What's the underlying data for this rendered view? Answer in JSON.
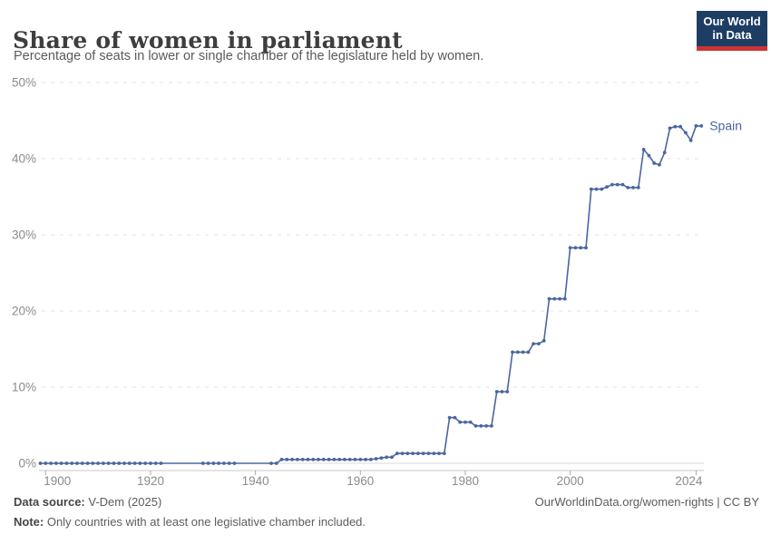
{
  "header": {
    "title": "Share of women in parliament",
    "subtitle": "Percentage of seats in lower or single chamber of the legislature held by women.",
    "logo_line1": "Our World",
    "logo_line2": "in Data"
  },
  "footer": {
    "source_label": "Data source:",
    "source_value": " V-Dem (2025)",
    "note_label": "Note:",
    "note_value": " Only countries with at least one legislative chamber included.",
    "link": "OurWorldinData.org/women-rights | CC BY"
  },
  "colors": {
    "line": "#4a66a0",
    "series_label": "#4a66a0",
    "logo_bg": "#1d3d63",
    "logo_red": "#cb3434"
  },
  "chart_data": {
    "type": "line",
    "title": "Share of women in parliament",
    "ylabel": "",
    "xlabel": "",
    "y_unit": "%",
    "ylim": [
      0,
      50
    ],
    "xlim": [
      1899,
      2025
    ],
    "x_ticks": [
      1900,
      1920,
      1940,
      1960,
      1980,
      2000,
      2024
    ],
    "y_ticks": [
      0,
      10,
      20,
      30,
      40,
      50
    ],
    "grid": "dashed-horizontal",
    "legend_position": "end-of-line-label",
    "series": [
      {
        "name": "Spain",
        "label": "Spain",
        "segments_note": "each item = [startYear, endYear, percentValue], annual points",
        "segments": [
          [
            1899,
            1922,
            0
          ],
          [
            1930,
            1936,
            0
          ],
          [
            1943,
            1944,
            0
          ],
          [
            1945,
            1962,
            0.5
          ],
          [
            1963,
            1963,
            0.6
          ],
          [
            1964,
            1964,
            0.7
          ],
          [
            1965,
            1966,
            0.8
          ],
          [
            1967,
            1976,
            1.3
          ],
          [
            1977,
            1978,
            6.0
          ],
          [
            1979,
            1981,
            5.4
          ],
          [
            1982,
            1985,
            4.9
          ],
          [
            1986,
            1988,
            9.4
          ],
          [
            1989,
            1992,
            14.6
          ],
          [
            1993,
            1994,
            15.7
          ],
          [
            1995,
            1995,
            16.1
          ],
          [
            1996,
            1999,
            21.6
          ],
          [
            2000,
            2003,
            28.3
          ],
          [
            2004,
            2006,
            36.0
          ],
          [
            2007,
            2007,
            36.3
          ],
          [
            2008,
            2010,
            36.6
          ],
          [
            2011,
            2013,
            36.2
          ],
          [
            2014,
            2014,
            41.2
          ],
          [
            2015,
            2015,
            40.4
          ],
          [
            2016,
            2016,
            39.4
          ],
          [
            2017,
            2017,
            39.2
          ],
          [
            2018,
            2018,
            40.8
          ],
          [
            2019,
            2019,
            44.0
          ],
          [
            2020,
            2021,
            44.2
          ],
          [
            2022,
            2022,
            43.4
          ],
          [
            2023,
            2023,
            42.4
          ],
          [
            2024,
            2025,
            44.3
          ]
        ]
      }
    ]
  }
}
